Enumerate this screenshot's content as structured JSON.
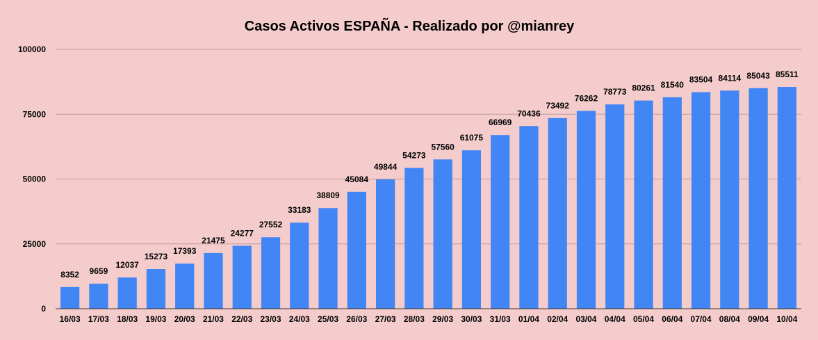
{
  "chart_data": {
    "type": "bar",
    "title": "Casos Activos ESPAÑA - Realizado por @mianrey",
    "xlabel": "",
    "ylabel": "",
    "categories": [
      "16/03",
      "17/03",
      "18/03",
      "19/03",
      "20/03",
      "21/03",
      "22/03",
      "23/03",
      "24/03",
      "25/03",
      "26/03",
      "27/03",
      "28/03",
      "29/03",
      "30/03",
      "31/03",
      "01/04",
      "02/04",
      "03/04",
      "04/04",
      "05/04",
      "06/04",
      "07/04",
      "08/04",
      "09/04",
      "10/04"
    ],
    "values": [
      8352,
      9659,
      12037,
      15273,
      17393,
      21475,
      24277,
      27552,
      33183,
      38809,
      45084,
      49844,
      54273,
      57560,
      61075,
      66969,
      70436,
      73492,
      76262,
      78773,
      80261,
      81540,
      83504,
      84114,
      85043,
      85511
    ],
    "ylim": [
      0,
      100000
    ],
    "yticks": [
      0,
      25000,
      50000,
      75000,
      100000
    ],
    "grid": true,
    "legend": "none",
    "bar_color": "#4285f4",
    "background_color": "#f4cccc"
  }
}
